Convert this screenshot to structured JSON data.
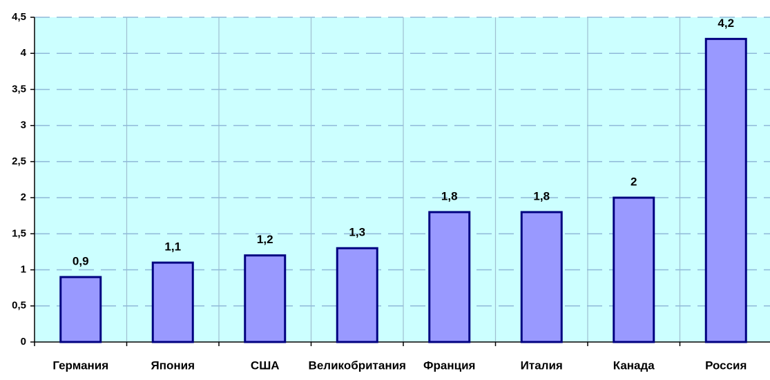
{
  "chart_data": {
    "type": "bar",
    "categories": [
      "Германия",
      "Япония",
      "США",
      "Великобритания",
      "Франция",
      "Италия",
      "Канада",
      "Россия"
    ],
    "values": [
      0.9,
      1.1,
      1.2,
      1.3,
      1.8,
      1.8,
      2,
      4.2
    ],
    "value_labels": [
      "0,9",
      "1,1",
      "1,2",
      "1,3",
      "1,8",
      "1,8",
      "2",
      "4,2"
    ],
    "color": "#9999ff",
    "ylim": [
      0,
      4.5
    ],
    "yticks": [
      0,
      {
        "value": 0.5,
        "label": "0,5"
      },
      {
        "value": 1,
        "label": "1"
      },
      {
        "value": 1.5,
        "label": "1,5"
      },
      {
        "value": 2,
        "label": "2"
      },
      {
        "value": 2.5,
        "label": "2,5"
      },
      {
        "value": 3,
        "label": "3"
      },
      {
        "value": 3.5,
        "label": "3,5"
      },
      {
        "value": 4,
        "label": "4"
      },
      {
        "value": 4.5,
        "label": "4,5"
      }
    ],
    "grid": true
  }
}
